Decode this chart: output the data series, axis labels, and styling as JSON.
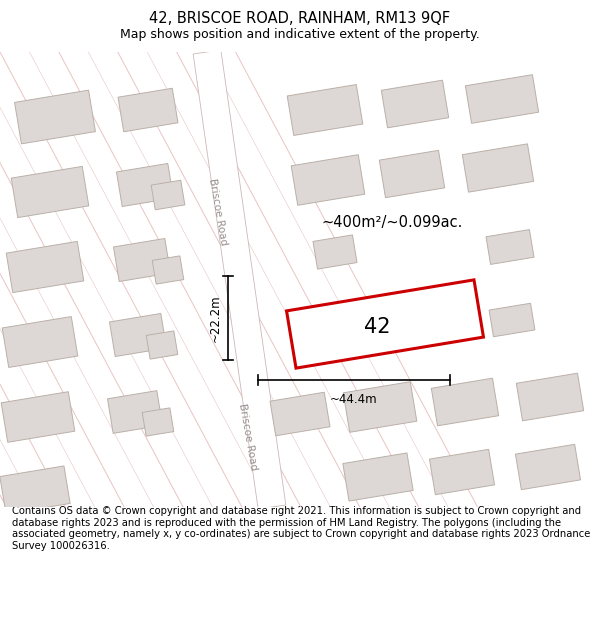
{
  "title": "42, BRISCOE ROAD, RAINHAM, RM13 9QF",
  "subtitle": "Map shows position and indicative extent of the property.",
  "footer": "Contains OS data © Crown copyright and database right 2021. This information is subject to Crown copyright and database rights 2023 and is reproduced with the permission of HM Land Registry. The polygons (including the associated geometry, namely x, y co-ordinates) are subject to Crown copyright and database rights 2023 Ordnance Survey 100026316.",
  "background_color": "#ffffff",
  "map_bg_color": "#f7f4f4",
  "building_fill": "#ddd8d5",
  "building_edge": "#bbb0a8",
  "road_fill": "#ffffff",
  "highlight_color": "#cc0000",
  "area_text": "~400m²/~0.099ac.",
  "width_label": "~44.4m",
  "height_label": "~22.2m",
  "property_label": "42",
  "road_label": "Briscoe Road",
  "title_fontsize": 10.5,
  "subtitle_fontsize": 9,
  "footer_fontsize": 7.2,
  "diagonal_line_color": "#e8c4c4",
  "diagonal_line_color2": "#d4a8a8"
}
